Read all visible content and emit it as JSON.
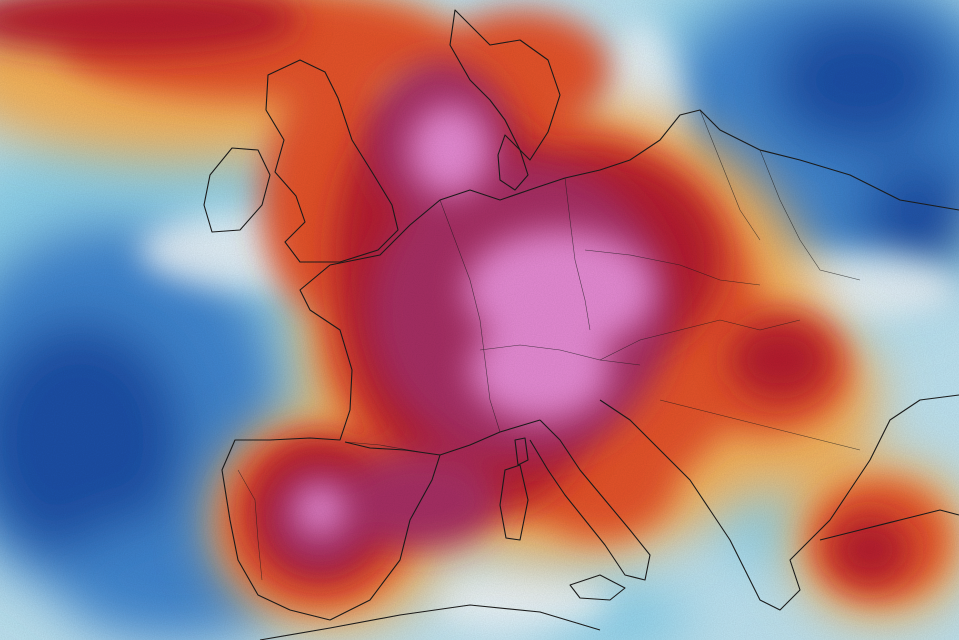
{
  "map": {
    "kind": "temperature-anomaly-heatmap",
    "region": "Europe",
    "text_labels": [],
    "palette": {
      "ocean_background": "#bfe4f2",
      "deep_cold": "#1b4fa6",
      "cold": "#3f86d0",
      "cool": "#8fd3ec",
      "neutral": "#f3f8fb",
      "warm": "#f6b35a",
      "hot": "#e5522b",
      "very_hot": "#b51d2f",
      "extreme": "#a62d64",
      "peak": "#e58ad3",
      "borders": "#1a1a1a"
    },
    "icon_names": [
      "coastline-outline",
      "country-borders",
      "admin-region-borders"
    ]
  }
}
